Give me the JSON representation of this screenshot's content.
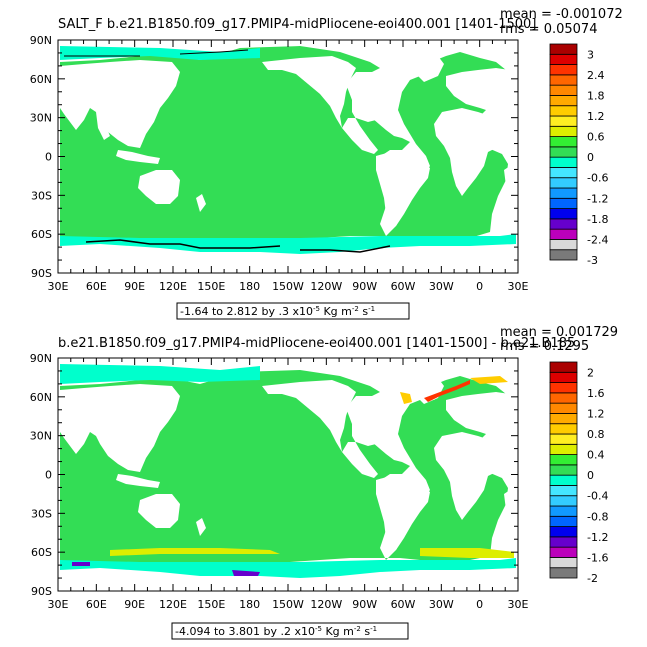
{
  "chart_data": [
    {
      "type": "heatmap",
      "title": "SALT_F  b.e21.B1850.f09_g17.PMIP4-midPliocene-eoi400.001  [1401-1500]",
      "stats": {
        "mean": "mean = -0.001072",
        "rms": "rms = 0.05074"
      },
      "x_ticks": [
        "30E",
        "60E",
        "90E",
        "120E",
        "150E",
        "180",
        "150W",
        "120W",
        "90W",
        "60W",
        "30W",
        "0",
        "30E"
      ],
      "y_ticks": [
        "90N",
        "60N",
        "30N",
        "0",
        "30S",
        "60S",
        "90S"
      ],
      "range_note": "-1.64 to 2.812 by .3 x10",
      "units": {
        "exp": "-5",
        "kg": " Kg m",
        "mexp": "-2",
        "s": " s",
        "sexp": "-1"
      },
      "colorbar_labels": [
        "3",
        "2.4",
        "1.8",
        "1.2",
        "0.6",
        "0",
        "-0.6",
        "-1.2",
        "-1.8",
        "-2.4",
        "-3"
      ],
      "colorbar_colors": [
        "#7a7a7a",
        "#d9d9d9",
        "#bb00bb",
        "#6600cc",
        "#0000ee",
        "#0066ff",
        "#1199ff",
        "#33ccff",
        "#44e6ff",
        "#00ffcc",
        "#33dd55",
        "#33ee33",
        "#ddee00",
        "#ffee22",
        "#ffcc00",
        "#ffaa00",
        "#ff8800",
        "#ff6600",
        "#ff3300",
        "#dd0000",
        "#aa0000"
      ]
    },
    {
      "type": "heatmap",
      "title": "b.e21.B1850.f09_g17.PMIP4-midPliocene-eoi400.001  [1401-1500] - b.e21.B185",
      "stats": {
        "mean": "mean = 0.001729",
        "rms": "rms = 0.1295"
      },
      "x_ticks": [
        "30E",
        "60E",
        "90E",
        "120E",
        "150E",
        "180",
        "150W",
        "120W",
        "90W",
        "60W",
        "30W",
        "0",
        "30E"
      ],
      "y_ticks": [
        "90N",
        "60N",
        "30N",
        "0",
        "30S",
        "60S",
        "90S"
      ],
      "range_note": "-4.094 to 3.801 by .2 x10",
      "units": {
        "exp": "-5",
        "kg": " Kg m",
        "mexp": "-2",
        "s": " s",
        "sexp": "-1"
      },
      "colorbar_labels": [
        "2",
        "1.6",
        "1.2",
        "0.8",
        "0.4",
        "0",
        "-0.4",
        "-0.8",
        "-1.2",
        "-1.6",
        "-2"
      ],
      "colorbar_colors": [
        "#7a7a7a",
        "#d9d9d9",
        "#bb00bb",
        "#6600cc",
        "#0000ee",
        "#0066ff",
        "#1199ff",
        "#33ccff",
        "#44e6ff",
        "#00ffcc",
        "#33dd55",
        "#33ee33",
        "#ddee00",
        "#ffee22",
        "#ffcc00",
        "#ffaa00",
        "#ff8800",
        "#ff6600",
        "#ff3300",
        "#dd0000",
        "#aa0000"
      ]
    }
  ],
  "colors": {
    "ocean_fill": "#33dd55",
    "high_lat_fill": "#00ffcc",
    "land": "#ffffff"
  }
}
